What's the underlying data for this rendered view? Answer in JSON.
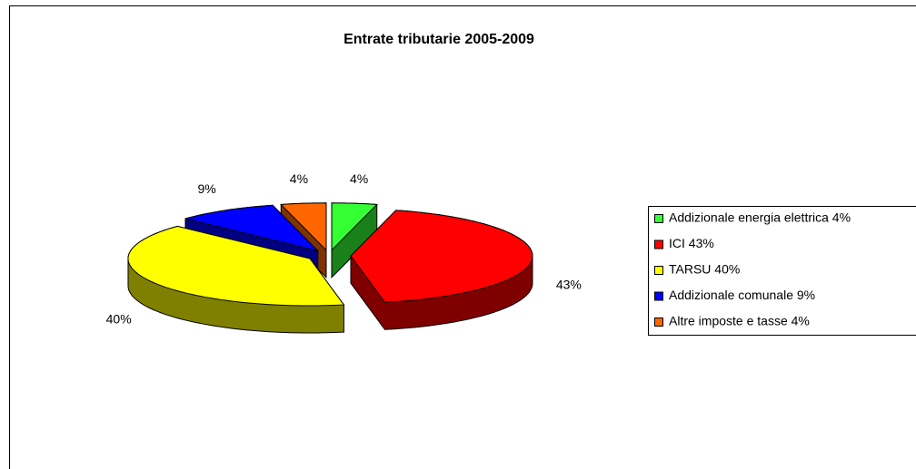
{
  "chart_data": {
    "type": "pie3d",
    "title": "Entrate tributarie 2005-2009",
    "categories": [
      "Addizionale energia elettrica 4%",
      "ICI 43%",
      "TARSU 40%",
      "Addizionale comunale 9%",
      "Altre imposte e tasse 4%"
    ],
    "values": [
      4,
      43,
      40,
      9,
      4
    ],
    "value_labels": [
      "4%",
      "43%",
      "40%",
      "9%",
      "4%"
    ],
    "colors": [
      "#33ff33",
      "#ff0000",
      "#ffff00",
      "#0000ff",
      "#ff6600"
    ],
    "legend": "right"
  }
}
